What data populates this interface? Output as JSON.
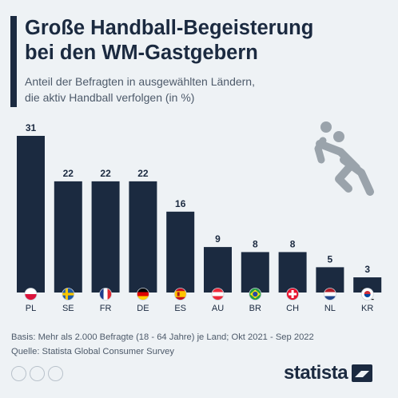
{
  "header": {
    "title_line1": "Große Handball-Begeisterung",
    "title_line2": "bei den WM-Gastgebern",
    "subtitle_line1": "Anteil der Befragten in ausgewählten Ländern,",
    "subtitle_line2": "die aktiv Handball verfolgen (in %)"
  },
  "chart_data": {
    "type": "bar",
    "categories": [
      "PL",
      "SE",
      "FR",
      "DE",
      "ES",
      "AU",
      "BR",
      "CH",
      "NL",
      "KR"
    ],
    "values": [
      31,
      22,
      22,
      22,
      16,
      9,
      8,
      8,
      5,
      3
    ],
    "ylim": [
      0,
      31
    ],
    "grid": false,
    "bar_color": "#1b2a40"
  },
  "footer": {
    "basis": "Basis: Mehr als 2.000 Befragte (18 - 64 Jahre) je Land; Okt 2021 - Sep 2022",
    "source": "Quelle: Statista Global Consumer Survey",
    "brand": "statista"
  },
  "colors": {
    "accent": "#1b2a40",
    "background": "#eef2f5",
    "icon": "#9aa3ab"
  }
}
